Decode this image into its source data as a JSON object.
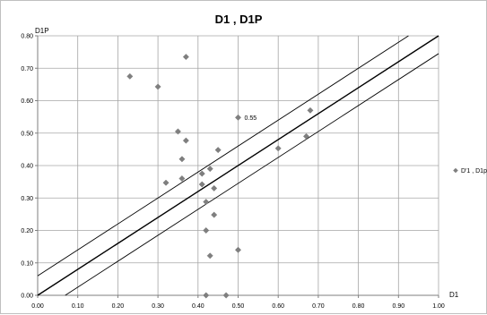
{
  "chart_data": {
    "type": "scatter",
    "title": "D1 , D1P",
    "xlabel": "D1",
    "ylabel": "D1P",
    "xlim": [
      0,
      1
    ],
    "ylim": [
      0,
      0.8
    ],
    "x_ticks": [
      "0.00",
      "0.10",
      "0.20",
      "0.30",
      "0.40",
      "0.50",
      "0.60",
      "0.70",
      "0.80",
      "0.90",
      "1.00"
    ],
    "y_ticks": [
      "0.00",
      "0.10",
      "0.20",
      "0.30",
      "0.40",
      "0.50",
      "0.60",
      "0.70",
      "0.80"
    ],
    "grid": true,
    "legend_position": "right",
    "series": [
      {
        "name": "D'1 , D1p",
        "color": "#7f7f7f",
        "marker": "diamond",
        "points": [
          [
            0.23,
            0.675
          ],
          [
            0.3,
            0.643
          ],
          [
            0.37,
            0.735
          ],
          [
            0.35,
            0.505
          ],
          [
            0.37,
            0.477
          ],
          [
            0.45,
            0.448
          ],
          [
            0.36,
            0.42
          ],
          [
            0.43,
            0.39
          ],
          [
            0.41,
            0.375
          ],
          [
            0.32,
            0.347
          ],
          [
            0.36,
            0.36
          ],
          [
            0.41,
            0.342
          ],
          [
            0.44,
            0.33
          ],
          [
            0.42,
            0.288
          ],
          [
            0.44,
            0.248
          ],
          [
            0.42,
            0.2
          ],
          [
            0.43,
            0.122
          ],
          [
            0.5,
            0.548
          ],
          [
            0.6,
            0.453
          ],
          [
            0.67,
            0.49
          ],
          [
            0.68,
            0.57
          ],
          [
            0.5,
            0.14
          ],
          [
            0.42,
            0.0
          ],
          [
            0.47,
            0.0
          ]
        ]
      }
    ],
    "reference_lines": [
      {
        "name": "identity",
        "intercept": 0.0,
        "slope": 0.8,
        "color": "#000000"
      },
      {
        "name": "upper",
        "intercept": 0.06,
        "slope": 0.8,
        "color": "#000000"
      },
      {
        "name": "lower",
        "intercept": -0.055,
        "slope": 0.8,
        "color": "#000000"
      }
    ],
    "annotations": [
      {
        "text": "0.55",
        "x": 0.5,
        "y": 0.548
      }
    ]
  }
}
